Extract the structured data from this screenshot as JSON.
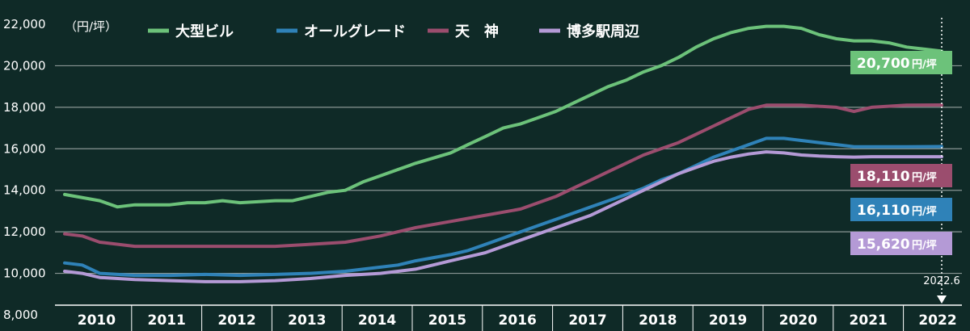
{
  "chart_data": {
    "type": "line",
    "unit_label": "（円/坪）",
    "xlim": [
      2010,
      2022.5
    ],
    "ylim": [
      8000,
      22000
    ],
    "y_ticks": [
      "22,000",
      "20,000",
      "18,000",
      "16,000",
      "14,000",
      "12,000",
      "10,000",
      "8,000"
    ],
    "y_tick_values": [
      22000,
      20000,
      18000,
      16000,
      14000,
      12000,
      10000,
      8000
    ],
    "x_ticks": [
      "2010",
      "2011",
      "2012",
      "2013",
      "2014",
      "2015",
      "2016",
      "2017",
      "2018",
      "2019",
      "2020",
      "2021",
      "2022"
    ],
    "x_tick_values": [
      2010,
      2011,
      2012,
      2013,
      2014,
      2015,
      2016,
      2017,
      2018,
      2019,
      2020,
      2021,
      2022
    ],
    "marker": {
      "label": "2022.6",
      "x": 2022.5
    },
    "background": "#0f2a27",
    "grid": true,
    "series": [
      {
        "name": "大型ビル",
        "color": "#6cc27a",
        "x": [
          2010,
          2010.5,
          2010.75,
          2011,
          2011.5,
          2011.75,
          2012,
          2012.25,
          2012.5,
          2013,
          2013.25,
          2013.5,
          2013.75,
          2014,
          2014.25,
          2014.5,
          2014.75,
          2015,
          2015.5,
          2015.75,
          2016,
          2016.25,
          2016.5,
          2016.75,
          2017,
          2017.25,
          2017.5,
          2017.75,
          2018,
          2018.25,
          2018.5,
          2018.75,
          2019,
          2019.25,
          2019.5,
          2019.75,
          2020,
          2020.25,
          2020.5,
          2020.75,
          2021,
          2021.25,
          2021.5,
          2021.75,
          2022,
          2022.5
        ],
        "y": [
          13800,
          13500,
          13200,
          13300,
          13300,
          13400,
          13400,
          13500,
          13400,
          13500,
          13500,
          13700,
          13900,
          14000,
          14400,
          14700,
          15000,
          15300,
          15800,
          16200,
          16600,
          17000,
          17200,
          17500,
          17800,
          18200,
          18600,
          19000,
          19300,
          19700,
          20000,
          20400,
          20900,
          21300,
          21600,
          21800,
          21900,
          21900,
          21800,
          21500,
          21300,
          21200,
          21200,
          21100,
          20900,
          20700
        ]
      },
      {
        "name": "オールグレード",
        "color": "#2f82b8",
        "x": [
          2010,
          2010.25,
          2010.5,
          2011,
          2011.5,
          2012,
          2012.5,
          2013,
          2013.5,
          2014,
          2014.5,
          2014.75,
          2015,
          2015.5,
          2015.75,
          2016,
          2016.25,
          2016.5,
          2016.75,
          2017,
          2017.25,
          2017.5,
          2017.75,
          2018,
          2018.25,
          2018.5,
          2018.75,
          2019,
          2019.25,
          2019.5,
          2019.75,
          2020,
          2020.25,
          2020.5,
          2020.75,
          2021,
          2021.25,
          2021.5,
          2021.75,
          2022,
          2022.5
        ],
        "y": [
          10500,
          10400,
          10000,
          9900,
          9900,
          9950,
          9900,
          9950,
          10000,
          10100,
          10300,
          10400,
          10600,
          10900,
          11100,
          11400,
          11700,
          12000,
          12300,
          12600,
          12900,
          13200,
          13500,
          13800,
          14100,
          14500,
          14800,
          15200,
          15600,
          15900,
          16200,
          16500,
          16500,
          16400,
          16300,
          16200,
          16100,
          16100,
          16100,
          16100,
          16110
        ]
      },
      {
        "name": "天　神",
        "color": "#9b4d6e",
        "x": [
          2010,
          2010.25,
          2010.5,
          2011,
          2011.5,
          2012,
          2012.5,
          2013,
          2013.5,
          2014,
          2014.5,
          2014.75,
          2015,
          2015.5,
          2016,
          2016.5,
          2016.75,
          2017,
          2017.25,
          2017.5,
          2017.75,
          2018,
          2018.25,
          2018.5,
          2018.75,
          2019,
          2019.25,
          2019.5,
          2019.75,
          2020,
          2020.5,
          2021,
          2021.25,
          2021.5,
          2022,
          2022.5
        ],
        "y": [
          11900,
          11800,
          11500,
          11300,
          11300,
          11300,
          11300,
          11300,
          11400,
          11500,
          11800,
          12000,
          12200,
          12500,
          12800,
          13100,
          13400,
          13700,
          14100,
          14500,
          14900,
          15300,
          15700,
          16000,
          16300,
          16700,
          17100,
          17500,
          17900,
          18100,
          18100,
          18000,
          17800,
          18000,
          18100,
          18110
        ]
      },
      {
        "name": "博多駅周辺",
        "color": "#b49ad6",
        "x": [
          2010,
          2010.25,
          2010.5,
          2011,
          2011.5,
          2012,
          2012.5,
          2013,
          2013.5,
          2014,
          2014.5,
          2015,
          2015.25,
          2015.5,
          2016,
          2016.25,
          2016.5,
          2016.75,
          2017,
          2017.25,
          2017.5,
          2017.75,
          2018,
          2018.25,
          2018.5,
          2018.75,
          2019,
          2019.25,
          2019.5,
          2019.75,
          2020,
          2020.25,
          2020.5,
          2020.75,
          2021,
          2021.25,
          2021.5,
          2022,
          2022.5
        ],
        "y": [
          10100,
          10000,
          9800,
          9700,
          9650,
          9600,
          9600,
          9650,
          9750,
          9900,
          10000,
          10200,
          10400,
          10600,
          11000,
          11300,
          11600,
          11900,
          12200,
          12500,
          12800,
          13200,
          13600,
          14000,
          14400,
          14800,
          15100,
          15400,
          15600,
          15750,
          15850,
          15800,
          15700,
          15650,
          15620,
          15600,
          15620,
          15620,
          15620
        ]
      }
    ],
    "callouts": [
      {
        "series": 0,
        "value": "20,700",
        "unit": "円/坪",
        "color": "#6cc27a"
      },
      {
        "series": 2,
        "value": "18,110",
        "unit": "円/坪",
        "color": "#9b4d6e"
      },
      {
        "series": 1,
        "value": "16,110",
        "unit": "円/坪",
        "color": "#2f82b8"
      },
      {
        "series": 3,
        "value": "15,620",
        "unit": "円/坪",
        "color": "#b49ad6"
      }
    ]
  }
}
